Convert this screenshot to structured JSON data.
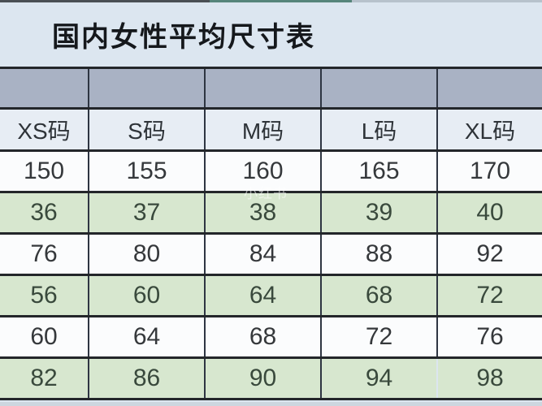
{
  "title": "国内女性平均尺寸表",
  "watermark": "小红书",
  "chart_data": {
    "type": "table",
    "title": "国内女性平均尺寸表",
    "columns": [
      "XS码",
      "S码",
      "M码",
      "L码",
      "XL码"
    ],
    "rows": [
      [
        "150",
        "155",
        "160",
        "165",
        "170"
      ],
      [
        "36",
        "37",
        "38",
        "39",
        "40"
      ],
      [
        "76",
        "80",
        "84",
        "88",
        "92"
      ],
      [
        "56",
        "60",
        "64",
        "68",
        "72"
      ],
      [
        "60",
        "64",
        "68",
        "72",
        "76"
      ],
      [
        "82",
        "86",
        "90",
        "94",
        "98"
      ]
    ]
  },
  "colors": {
    "title_bar_bg": "#dce6f0",
    "spacer_row_bg": "#a9b2c4",
    "header_row_bg": "#e7edf4",
    "white_row_bg": "#fbfcfd",
    "green_row_bg": "#d7e7cf",
    "border": "#23262a",
    "top_edge_dark": "#4a4f54",
    "top_edge_teal": "#56857b",
    "top_edge_light": "#b7c2cc"
  }
}
